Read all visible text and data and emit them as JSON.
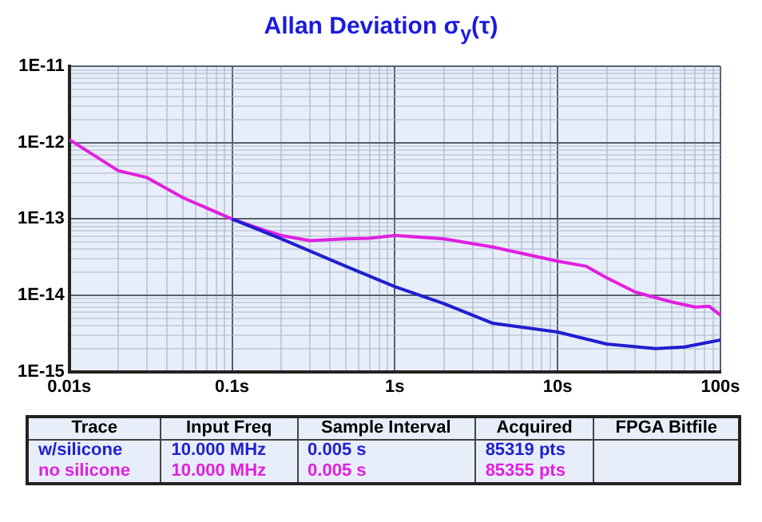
{
  "chart_data": {
    "type": "line",
    "title": "Allan Deviation σ$_{y}$(τ)",
    "log": "xy",
    "grid": true,
    "legend": false,
    "marker": "none",
    "line_style": "solid",
    "xlim": [
      0.01,
      100
    ],
    "ylim": [
      1e-15,
      1e-11
    ],
    "xticks": [
      {
        "value": 0.01,
        "label": "0.01s"
      },
      {
        "value": 0.02,
        "label": null
      },
      {
        "value": 0.03,
        "label": null
      },
      {
        "value": 0.04,
        "label": null
      },
      {
        "value": 0.05,
        "label": null
      },
      {
        "value": 0.06,
        "label": null
      },
      {
        "value": 0.07,
        "label": null
      },
      {
        "value": 0.08,
        "label": null
      },
      {
        "value": 0.09,
        "label": null
      },
      {
        "value": 0.1,
        "label": "0.1s"
      },
      {
        "value": 0.2,
        "label": null
      },
      {
        "value": 0.3,
        "label": null
      },
      {
        "value": 0.4,
        "label": null
      },
      {
        "value": 0.5,
        "label": null
      },
      {
        "value": 0.6,
        "label": null
      },
      {
        "value": 0.7,
        "label": null
      },
      {
        "value": 0.8,
        "label": null
      },
      {
        "value": 0.9,
        "label": null
      },
      {
        "value": 1,
        "label": "1s"
      },
      {
        "value": 2,
        "label": null
      },
      {
        "value": 3,
        "label": null
      },
      {
        "value": 4,
        "label": null
      },
      {
        "value": 5,
        "label": null
      },
      {
        "value": 6,
        "label": null
      },
      {
        "value": 7,
        "label": null
      },
      {
        "value": 8,
        "label": null
      },
      {
        "value": 9,
        "label": null
      },
      {
        "value": 10,
        "label": "10s"
      },
      {
        "value": 20,
        "label": null
      },
      {
        "value": 30,
        "label": null
      },
      {
        "value": 40,
        "label": null
      },
      {
        "value": 50,
        "label": null
      },
      {
        "value": 60,
        "label": null
      },
      {
        "value": 70,
        "label": null
      },
      {
        "value": 80,
        "label": null
      },
      {
        "value": 90,
        "label": null
      },
      {
        "value": 100,
        "label": "100s"
      }
    ],
    "yticks": [
      {
        "value": 1e-15,
        "label": "1E-15"
      },
      {
        "value": 2e-15,
        "label": null
      },
      {
        "value": 3e-15,
        "label": null
      },
      {
        "value": 4e-15,
        "label": null
      },
      {
        "value": 5e-15,
        "label": null
      },
      {
        "value": 6e-15,
        "label": null
      },
      {
        "value": 7e-15,
        "label": null
      },
      {
        "value": 8e-15,
        "label": null
      },
      {
        "value": 9e-15,
        "label": null
      },
      {
        "value": 1e-14,
        "label": "1E-14"
      },
      {
        "value": 2e-14,
        "label": null
      },
      {
        "value": 3e-14,
        "label": null
      },
      {
        "value": 4e-14,
        "label": null
      },
      {
        "value": 5e-14,
        "label": null
      },
      {
        "value": 6e-14,
        "label": null
      },
      {
        "value": 7e-14,
        "label": null
      },
      {
        "value": 8e-14,
        "label": null
      },
      {
        "value": 9e-14,
        "label": null
      },
      {
        "value": 1e-13,
        "label": "1E-13"
      },
      {
        "value": 2e-13,
        "label": null
      },
      {
        "value": 3e-13,
        "label": null
      },
      {
        "value": 4e-13,
        "label": null
      },
      {
        "value": 5e-13,
        "label": null
      },
      {
        "value": 6e-13,
        "label": null
      },
      {
        "value": 7e-13,
        "label": null
      },
      {
        "value": 8e-13,
        "label": null
      },
      {
        "value": 9e-13,
        "label": null
      },
      {
        "value": 1e-12,
        "label": "1E-12"
      },
      {
        "value": 2e-12,
        "label": null
      },
      {
        "value": 3e-12,
        "label": null
      },
      {
        "value": 4e-12,
        "label": null
      },
      {
        "value": 5e-12,
        "label": null
      },
      {
        "value": 6e-12,
        "label": null
      },
      {
        "value": 7e-12,
        "label": null
      },
      {
        "value": 8e-12,
        "label": null
      },
      {
        "value": 9e-12,
        "label": null
      },
      {
        "value": 1e-11,
        "label": "1E-11"
      }
    ],
    "series": [
      {
        "name": "w/silicone",
        "color": "#1f1fd0",
        "x": [
          0.1,
          0.2,
          0.5,
          1,
          2,
          4,
          10,
          20,
          40,
          60,
          100
        ],
        "values": [
          1e-13,
          5.5e-14,
          2.4e-14,
          1.3e-14,
          7.8e-15,
          4.3e-15,
          3.3e-15,
          2.3e-15,
          2e-15,
          2.1e-15,
          2.6e-15
        ]
      },
      {
        "name": "no silicone",
        "color": "#e020e0",
        "x": [
          0.01,
          0.02,
          0.03,
          0.05,
          0.1,
          0.15,
          0.2,
          0.3,
          0.5,
          0.7,
          1,
          2,
          4,
          10,
          15,
          20,
          30,
          50,
          70,
          85,
          100
        ],
        "values": [
          1.1e-12,
          4.3e-13,
          3.5e-13,
          1.9e-13,
          1e-13,
          7.4e-14,
          6.1e-14,
          5.2e-14,
          5.5e-14,
          5.6e-14,
          6.1e-14,
          5.5e-14,
          4.3e-14,
          2.8e-14,
          2.4e-14,
          1.7e-14,
          1.1e-14,
          8.2e-15,
          7e-15,
          7.2e-15,
          5.5e-15
        ]
      }
    ],
    "annotations": [
      "Trace",
      "Input Freq",
      "Sample Interval",
      "Acquired",
      "FPGA Bitfile",
      "10.000 MHz",
      "0.005 s",
      "85319 pts",
      "10.000 MHz",
      "0.005 s",
      "85355 pts"
    ]
  }
}
